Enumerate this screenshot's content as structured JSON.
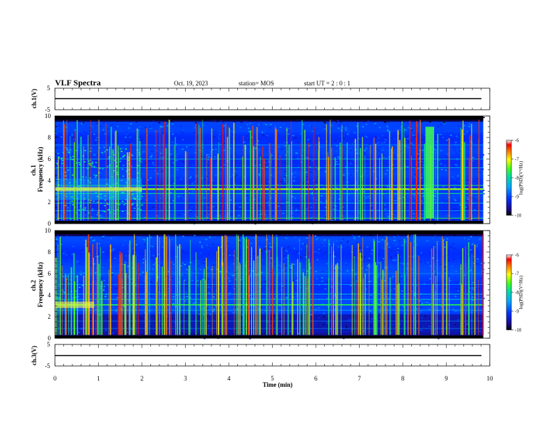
{
  "header": {
    "title": "VLF Spectra",
    "date": "Oct. 19, 2023",
    "station": "station= MOS",
    "start_ut": "start  UT =  2 : 0  : 1"
  },
  "chart_data": [
    {
      "type": "line",
      "name": "ch1_waveform",
      "ylabel": "ch.1(V)",
      "ylim": [
        -5,
        5
      ],
      "ytick_labels": [
        "5",
        "-5"
      ],
      "xlim": [
        0,
        10
      ],
      "y_value": 0
    },
    {
      "type": "heatmap",
      "name": "ch1_spectrogram",
      "ylabel": "ch.1\nFrequency (kHz)",
      "ylabel_lines": [
        "ch.1",
        "Frequency (kHz)"
      ],
      "xlim": [
        0,
        10
      ],
      "ylim": [
        0,
        10
      ],
      "ytick_labels": [
        "0",
        "2",
        "4",
        "6",
        "8",
        "10"
      ],
      "data_end_min": 9.85,
      "colorbar": {
        "label": "log(PSD)(V²/Hz)",
        "range": [
          -10,
          -6
        ],
        "tick_labels": [
          "-6",
          "-7",
          "-8",
          "-9",
          "-10"
        ]
      }
    },
    {
      "type": "heatmap",
      "name": "ch2_spectrogram",
      "ylabel": "ch.2\nFrequency (kHz)",
      "ylabel_lines": [
        "ch.2",
        "Frequency (kHz)"
      ],
      "xlim": [
        0,
        10
      ],
      "ylim": [
        0,
        10
      ],
      "ytick_labels": [
        "0",
        "2",
        "4",
        "6",
        "8",
        "10"
      ],
      "data_end_min": 9.85,
      "colorbar": {
        "label": "log(PSD)(V²/Hz)",
        "range": [
          -10,
          -6
        ],
        "tick_labels": [
          "-6",
          "-7",
          "-8",
          "-9",
          "-10"
        ]
      }
    },
    {
      "type": "line",
      "name": "ch3_waveform",
      "ylabel": "ch.3(V)",
      "ylim": [
        -5,
        5
      ],
      "ytick_labels": [
        "5",
        "-5"
      ],
      "xlim": [
        0,
        10
      ],
      "y_value": 0
    }
  ],
  "x_axis": {
    "label": "Time (min)",
    "range": [
      0,
      10
    ],
    "tick_labels": [
      "0",
      "1",
      "2",
      "3",
      "4",
      "5",
      "6",
      "7",
      "8",
      "9",
      "10"
    ]
  }
}
